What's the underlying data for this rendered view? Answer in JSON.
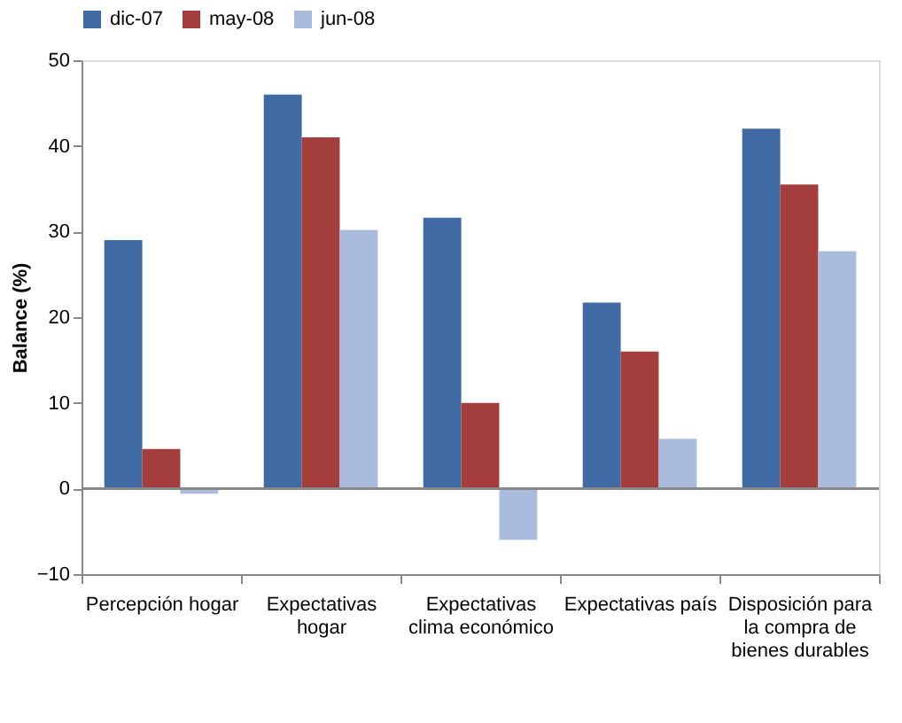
{
  "chart_data": {
    "type": "bar",
    "ylabel": "Balance (%)",
    "categories": [
      "Percepción hogar",
      "Expectativas hogar",
      "Expectativas clima económico",
      "Expectativas país",
      "Disposición para la compra de bienes durables"
    ],
    "series": [
      {
        "name": "dic-07",
        "color": "#3f6aa4",
        "values": [
          29.0,
          46.0,
          31.6,
          21.7,
          42.0
        ]
      },
      {
        "name": "may-08",
        "color": "#a33e3c",
        "values": [
          4.6,
          41.0,
          10.0,
          16.0,
          35.5
        ]
      },
      {
        "name": "jun-08",
        "color": "#a9bcde",
        "values": [
          -0.6,
          30.2,
          -6.0,
          5.8,
          27.7
        ]
      }
    ],
    "ylim": [
      -10,
      50
    ],
    "yticks": [
      -10,
      0,
      10,
      20,
      30,
      40,
      50
    ],
    "ref_lines": [
      {
        "axis": "y",
        "value": 0
      }
    ],
    "grid": false,
    "legend": "top"
  }
}
